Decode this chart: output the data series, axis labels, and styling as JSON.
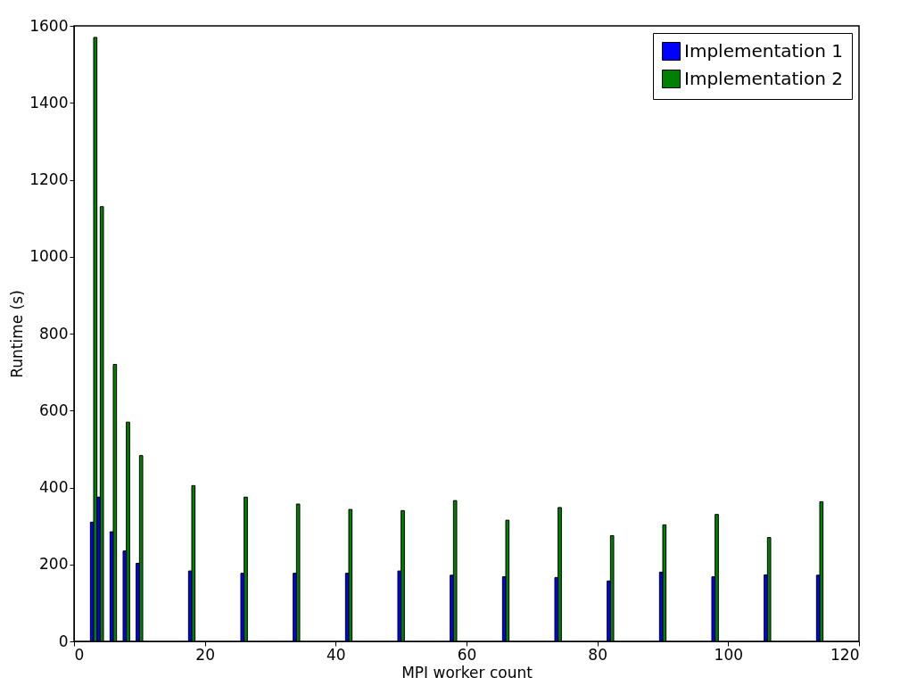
{
  "chart_data": {
    "type": "bar",
    "xlabel": "MPI worker count",
    "ylabel": "Runtime (s)",
    "x": [
      3,
      4,
      6,
      8,
      10,
      18,
      26,
      34,
      42,
      50,
      58,
      66,
      74,
      82,
      90,
      98,
      106,
      114
    ],
    "series": [
      {
        "name": "Implementation 1",
        "color": "#0000ff",
        "values": [
          310,
          375,
          285,
          235,
          203,
          183,
          177,
          177,
          177,
          183,
          172,
          168,
          166,
          157,
          180,
          168,
          173,
          172
        ]
      },
      {
        "name": "Implementation 2",
        "color": "#008000",
        "values": [
          1570,
          1130,
          720,
          570,
          483,
          405,
          375,
          357,
          343,
          340,
          366,
          315,
          348,
          275,
          303,
          330,
          270,
          363
        ]
      }
    ],
    "xlim": [
      0,
      120
    ],
    "xticks": [
      0,
      20,
      40,
      60,
      80,
      100,
      120
    ],
    "ylim": [
      0,
      1600
    ],
    "yticks": [
      0,
      200,
      400,
      600,
      800,
      1000,
      1200,
      1400,
      1600
    ],
    "grid": false,
    "legend": "top right"
  }
}
